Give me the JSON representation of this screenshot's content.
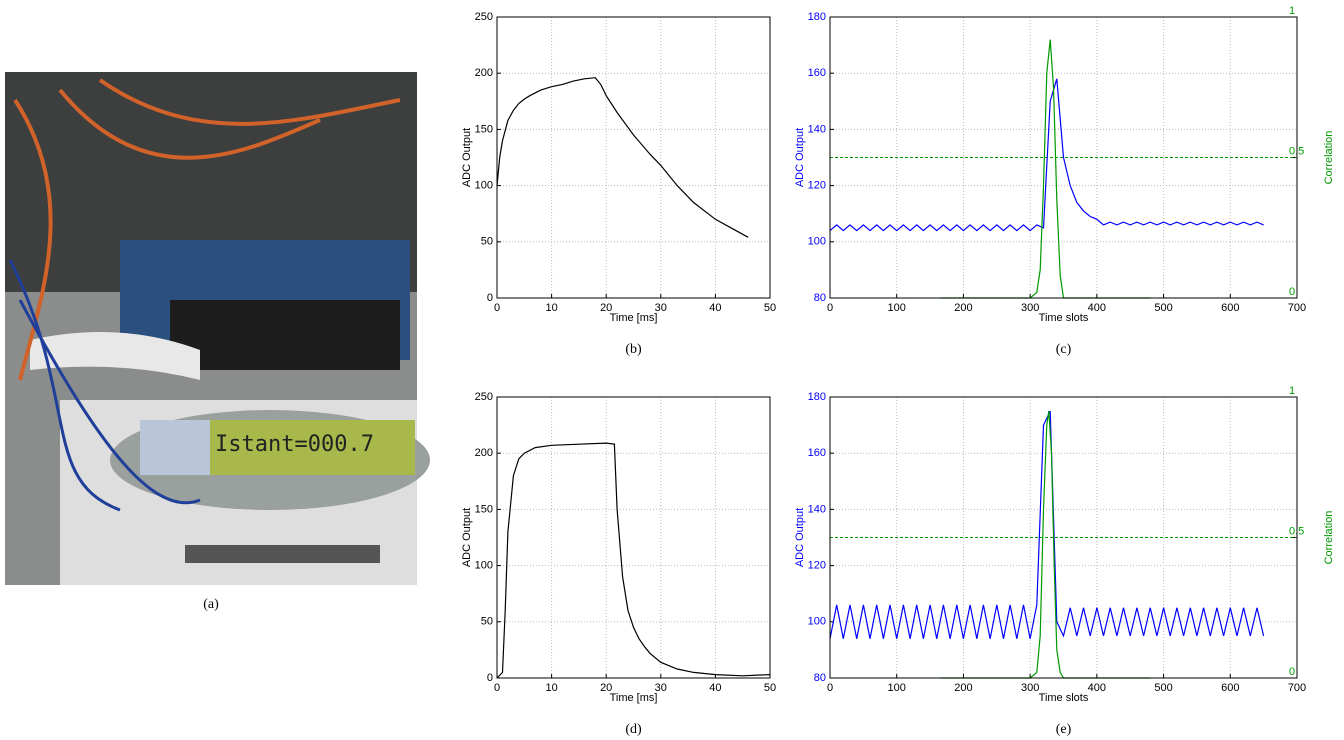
{
  "photo": {
    "caption": "(a)",
    "display_text": "Istant=000.7"
  },
  "chart_data": [
    {
      "type": "line",
      "caption": "(b)",
      "xlabel": "Time [ms]",
      "ylabel": "ADC Output",
      "xlim": [
        0,
        50
      ],
      "xticks": [
        0,
        10,
        20,
        30,
        40,
        50
      ],
      "ylim": [
        0,
        250
      ],
      "yticks": [
        0,
        50,
        100,
        150,
        200,
        250
      ],
      "grid": true,
      "series": [
        {
          "color": "#000000",
          "x": [
            0,
            0.5,
            1,
            2,
            3,
            4,
            5,
            6,
            8,
            10,
            12,
            14,
            16,
            18,
            19,
            20,
            22,
            25,
            28,
            30,
            33,
            36,
            40,
            43,
            46
          ],
          "values": [
            100,
            125,
            140,
            158,
            167,
            173,
            177,
            180,
            185,
            188,
            190,
            193,
            195,
            196,
            190,
            180,
            165,
            145,
            128,
            118,
            100,
            85,
            70,
            62,
            54
          ]
        }
      ]
    },
    {
      "type": "line",
      "caption": "(c)",
      "xlabel": "Time slots",
      "ylabel": "ADC Output",
      "y2label": "Correlation",
      "xlim": [
        0,
        700
      ],
      "xticks": [
        0,
        100,
        200,
        300,
        400,
        500,
        600,
        700
      ],
      "ylim": [
        80,
        180
      ],
      "yticks": [
        80,
        100,
        120,
        140,
        160,
        180
      ],
      "y2lim": [
        0,
        1
      ],
      "y2ticks": [
        0,
        0.5,
        1
      ],
      "grid": true,
      "threshold": {
        "value": 0.5,
        "axis": "y2",
        "color": "#009900"
      },
      "series": [
        {
          "color": "#0000ff",
          "x": [
            0,
            10,
            20,
            30,
            40,
            50,
            60,
            70,
            80,
            90,
            100,
            110,
            120,
            130,
            140,
            150,
            160,
            170,
            180,
            190,
            200,
            210,
            220,
            230,
            240,
            250,
            260,
            270,
            280,
            290,
            300,
            310,
            320,
            330,
            340,
            350,
            360,
            370,
            380,
            390,
            400,
            410,
            420,
            430,
            440,
            450,
            460,
            470,
            480,
            490,
            500,
            510,
            520,
            530,
            540,
            550,
            560,
            570,
            580,
            590,
            600,
            610,
            620,
            630,
            640,
            650
          ],
          "values": [
            104,
            106,
            104,
            106,
            104,
            106,
            104,
            106,
            104,
            106,
            104,
            106,
            104,
            106,
            104,
            106,
            104,
            106,
            104,
            106,
            104,
            106,
            104,
            106,
            104,
            106,
            104,
            106,
            104,
            106,
            104,
            106,
            105,
            150,
            158,
            130,
            120,
            114,
            111,
            109,
            108,
            106,
            107,
            106,
            107,
            106,
            107,
            106,
            107,
            106,
            107,
            106,
            107,
            106,
            107,
            106,
            107,
            106,
            107,
            106,
            107,
            106,
            107,
            106,
            107,
            106
          ]
        },
        {
          "color": "#009900",
          "axis": "y2",
          "x": [
            165,
            200,
            250,
            300,
            310,
            315,
            320,
            325,
            330,
            335,
            340,
            345,
            350,
            400,
            480
          ],
          "values": [
            0,
            0,
            0,
            0,
            0.02,
            0.1,
            0.4,
            0.8,
            0.92,
            0.75,
            0.35,
            0.08,
            0,
            0,
            0
          ]
        }
      ]
    },
    {
      "type": "line",
      "caption": "(d)",
      "xlabel": "Time [ms]",
      "ylabel": "ADC Output",
      "xlim": [
        0,
        50
      ],
      "xticks": [
        0,
        10,
        20,
        30,
        40,
        50
      ],
      "ylim": [
        0,
        250
      ],
      "yticks": [
        0,
        50,
        100,
        150,
        200,
        250
      ],
      "grid": true,
      "series": [
        {
          "color": "#000000",
          "x": [
            0,
            1,
            1.5,
            2,
            3,
            4,
            5,
            7,
            10,
            15,
            20,
            21.5,
            22,
            23,
            24,
            25,
            26,
            27,
            28,
            30,
            33,
            36,
            40,
            45,
            50
          ],
          "values": [
            0,
            5,
            60,
            130,
            180,
            195,
            200,
            205,
            207,
            208,
            209,
            208,
            150,
            90,
            60,
            45,
            35,
            28,
            22,
            14,
            8,
            5,
            3,
            2,
            3
          ]
        }
      ]
    },
    {
      "type": "line",
      "caption": "(e)",
      "xlabel": "Time slots",
      "ylabel": "ADC Output",
      "y2label": "Correlation",
      "xlim": [
        0,
        700
      ],
      "xticks": [
        0,
        100,
        200,
        300,
        400,
        500,
        600,
        700
      ],
      "ylim": [
        80,
        180
      ],
      "yticks": [
        80,
        100,
        120,
        140,
        160,
        180
      ],
      "y2lim": [
        0,
        1
      ],
      "y2ticks": [
        0,
        0.5,
        1
      ],
      "grid": true,
      "threshold": {
        "value": 0.5,
        "axis": "y2",
        "color": "#009900"
      },
      "series": [
        {
          "color": "#0000ff",
          "x": [
            0,
            10,
            20,
            30,
            40,
            50,
            60,
            70,
            80,
            90,
            100,
            110,
            120,
            130,
            140,
            150,
            160,
            170,
            180,
            190,
            200,
            210,
            220,
            230,
            240,
            250,
            260,
            270,
            280,
            290,
            300,
            310,
            320,
            330,
            340,
            350,
            360,
            370,
            380,
            390,
            400,
            410,
            420,
            430,
            440,
            450,
            460,
            470,
            480,
            490,
            500,
            510,
            520,
            530,
            540,
            550,
            560,
            570,
            580,
            590,
            600,
            610,
            620,
            630,
            640,
            650
          ],
          "values": [
            94,
            106,
            94,
            106,
            94,
            106,
            94,
            106,
            94,
            106,
            94,
            106,
            94,
            106,
            94,
            106,
            94,
            106,
            94,
            106,
            94,
            106,
            94,
            106,
            94,
            106,
            94,
            106,
            94,
            106,
            94,
            106,
            170,
            175,
            100,
            95,
            105,
            95,
            105,
            95,
            105,
            95,
            105,
            95,
            105,
            95,
            105,
            95,
            105,
            95,
            105,
            95,
            105,
            95,
            105,
            95,
            105,
            95,
            105,
            95,
            105,
            95,
            105,
            95,
            105,
            95
          ]
        },
        {
          "color": "#009900",
          "axis": "y2",
          "x": [
            165,
            200,
            250,
            300,
            310,
            315,
            320,
            325,
            328,
            332,
            336,
            340,
            345,
            350,
            400,
            480
          ],
          "values": [
            0,
            0,
            0,
            0,
            0.02,
            0.15,
            0.6,
            0.9,
            0.95,
            0.8,
            0.4,
            0.1,
            0.02,
            0,
            0,
            0
          ]
        }
      ]
    }
  ]
}
